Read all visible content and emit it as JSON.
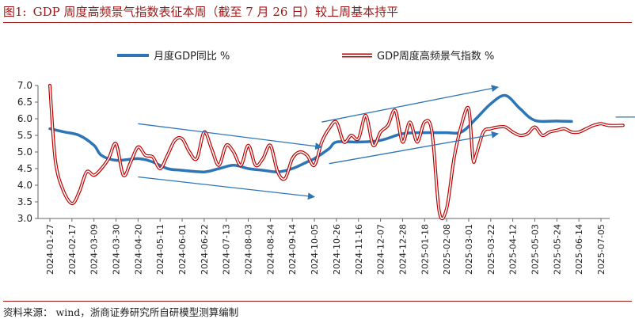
{
  "figure": {
    "label": "图1:",
    "title": "GDP 周度高频景气指数表征本周（截至 7 月 26 日）较上周基本持平"
  },
  "source": {
    "label": "资料来源：",
    "text": "wind，浙商证券研究所自研模型测算编制"
  },
  "colors": {
    "monthly_line": "#2e75b6",
    "weekly_outer": "#c00000",
    "weekly_inner": "#ffffff",
    "arrow": "#2e75b6",
    "title": "#a31515"
  },
  "chart_data": {
    "type": "line",
    "x": [
      "2024-01-27",
      "2024-02-17",
      "2024-03-09",
      "2024-03-30",
      "2024-04-20",
      "2024-05-11",
      "2024-06-01",
      "2024-06-22",
      "2024-07-13",
      "2024-08-03",
      "2024-08-24",
      "2024-09-14",
      "2024-10-05",
      "2024-10-26",
      "2024-11-16",
      "2024-12-07",
      "2024-12-28",
      "2025-01-18",
      "2025-02-08",
      "2025-03-01",
      "2025-03-22",
      "2025-04-12",
      "2025-05-03",
      "2025-05-24",
      "2025-06-14",
      "2025-07-05"
    ],
    "ylim": [
      3.0,
      7.0
    ],
    "yticks": [
      "7.0",
      "6.5",
      "6.0",
      "5.5",
      "5.0",
      "4.5",
      "4.0",
      "3.5",
      "3.0"
    ],
    "grid": false,
    "legend_position": "top",
    "series": [
      {
        "name": "月度GDP同比 %",
        "style": "solid-blue",
        "points": [
          [
            "2024-01-27",
            5.7
          ],
          [
            "2024-02-10",
            5.6
          ],
          [
            "2024-02-24",
            5.5
          ],
          [
            "2024-03-09",
            5.2
          ],
          [
            "2024-03-16",
            4.9
          ],
          [
            "2024-03-30",
            4.75
          ],
          [
            "2024-04-20",
            4.8
          ],
          [
            "2024-05-04",
            4.7
          ],
          [
            "2024-05-18",
            4.5
          ],
          [
            "2024-06-01",
            4.45
          ],
          [
            "2024-06-22",
            4.4
          ],
          [
            "2024-07-06",
            4.5
          ],
          [
            "2024-07-20",
            4.6
          ],
          [
            "2024-08-03",
            4.5
          ],
          [
            "2024-08-17",
            4.45
          ],
          [
            "2024-08-31",
            4.4
          ],
          [
            "2024-09-14",
            4.5
          ],
          [
            "2024-09-28",
            4.7
          ],
          [
            "2024-10-05",
            4.8
          ],
          [
            "2024-10-19",
            5.1
          ],
          [
            "2024-10-26",
            5.3
          ],
          [
            "2024-11-16",
            5.3
          ],
          [
            "2024-12-07",
            5.35
          ],
          [
            "2024-12-28",
            5.55
          ],
          [
            "2025-01-18",
            5.58
          ],
          [
            "2025-02-08",
            5.58
          ],
          [
            "2025-02-22",
            5.6
          ],
          [
            "2025-03-08",
            6.0
          ],
          [
            "2025-03-22",
            6.45
          ],
          [
            "2025-04-05",
            6.7
          ],
          [
            "2025-04-19",
            6.3
          ],
          [
            "2025-05-03",
            5.95
          ],
          [
            "2025-05-24",
            5.93
          ],
          [
            "2025-06-07",
            5.92
          ]
        ]
      },
      {
        "name": "GDP周度高频景气指数 %",
        "style": "double-red",
        "points": [
          [
            "2024-01-27",
            7.0
          ],
          [
            "2024-02-01",
            4.8
          ],
          [
            "2024-02-08",
            3.9
          ],
          [
            "2024-02-17",
            3.45
          ],
          [
            "2024-02-24",
            3.8
          ],
          [
            "2024-03-02",
            4.4
          ],
          [
            "2024-03-09",
            4.3
          ],
          [
            "2024-03-16",
            4.5
          ],
          [
            "2024-03-23",
            4.8
          ],
          [
            "2024-03-30",
            5.25
          ],
          [
            "2024-04-06",
            4.3
          ],
          [
            "2024-04-13",
            4.7
          ],
          [
            "2024-04-20",
            5.15
          ],
          [
            "2024-04-27",
            4.9
          ],
          [
            "2024-05-04",
            4.85
          ],
          [
            "2024-05-11",
            4.5
          ],
          [
            "2024-05-18",
            4.9
          ],
          [
            "2024-05-25",
            5.35
          ],
          [
            "2024-06-01",
            5.4
          ],
          [
            "2024-06-08",
            5.0
          ],
          [
            "2024-06-15",
            4.8
          ],
          [
            "2024-06-22",
            5.6
          ],
          [
            "2024-06-29",
            5.1
          ],
          [
            "2024-07-06",
            4.6
          ],
          [
            "2024-07-13",
            5.2
          ],
          [
            "2024-07-20",
            5.0
          ],
          [
            "2024-07-27",
            4.6
          ],
          [
            "2024-08-03",
            5.2
          ],
          [
            "2024-08-10",
            4.6
          ],
          [
            "2024-08-17",
            4.8
          ],
          [
            "2024-08-24",
            5.2
          ],
          [
            "2024-08-31",
            4.4
          ],
          [
            "2024-09-07",
            4.2
          ],
          [
            "2024-09-14",
            4.8
          ],
          [
            "2024-09-21",
            5.0
          ],
          [
            "2024-09-28",
            4.9
          ],
          [
            "2024-10-05",
            4.6
          ],
          [
            "2024-10-12",
            5.3
          ],
          [
            "2024-10-19",
            5.7
          ],
          [
            "2024-10-26",
            5.9
          ],
          [
            "2024-11-02",
            5.3
          ],
          [
            "2024-11-09",
            5.5
          ],
          [
            "2024-11-16",
            5.4
          ],
          [
            "2024-11-23",
            6.1
          ],
          [
            "2024-11-30",
            5.2
          ],
          [
            "2024-12-07",
            5.6
          ],
          [
            "2024-12-14",
            5.8
          ],
          [
            "2024-12-21",
            6.25
          ],
          [
            "2024-12-28",
            5.3
          ],
          [
            "2025-01-04",
            5.9
          ],
          [
            "2025-01-11",
            5.3
          ],
          [
            "2025-01-18",
            5.9
          ],
          [
            "2025-01-25",
            5.6
          ],
          [
            "2025-02-01",
            3.2
          ],
          [
            "2025-02-08",
            3.3
          ],
          [
            "2025-02-15",
            4.8
          ],
          [
            "2025-02-22",
            5.8
          ],
          [
            "2025-03-01",
            6.3
          ],
          [
            "2025-03-05",
            4.8
          ],
          [
            "2025-03-08",
            4.9
          ],
          [
            "2025-03-15",
            5.6
          ],
          [
            "2025-03-22",
            5.7
          ],
          [
            "2025-03-29",
            5.75
          ],
          [
            "2025-04-05",
            5.75
          ],
          [
            "2025-04-12",
            5.6
          ],
          [
            "2025-04-19",
            5.5
          ],
          [
            "2025-04-26",
            5.55
          ],
          [
            "2025-05-03",
            5.75
          ],
          [
            "2025-05-10",
            5.5
          ],
          [
            "2025-05-17",
            5.6
          ],
          [
            "2025-05-24",
            5.65
          ],
          [
            "2025-05-31",
            5.7
          ],
          [
            "2025-06-07",
            5.6
          ],
          [
            "2025-06-14",
            5.6
          ],
          [
            "2025-06-21",
            5.7
          ],
          [
            "2025-06-28",
            5.8
          ],
          [
            "2025-07-05",
            5.85
          ],
          [
            "2025-07-12",
            5.8
          ],
          [
            "2025-07-26",
            5.8
          ]
        ]
      }
    ],
    "trend_arrows": [
      {
        "from": [
          "2024-04-20",
          5.85
        ],
        "to": [
          "2024-10-12",
          5.15
        ]
      },
      {
        "from": [
          "2024-04-20",
          4.25
        ],
        "to": [
          "2024-10-05",
          3.65
        ]
      },
      {
        "from": [
          "2024-10-12",
          5.9
        ],
        "to": [
          "2025-03-29",
          6.95
        ]
      },
      {
        "from": [
          "2024-10-19",
          4.65
        ],
        "to": [
          "2025-03-29",
          5.55
        ]
      },
      {
        "from": [
          "2025-07-19",
          6.05
        ],
        "to": [
          "2025-08-16",
          6.05
        ]
      }
    ]
  }
}
